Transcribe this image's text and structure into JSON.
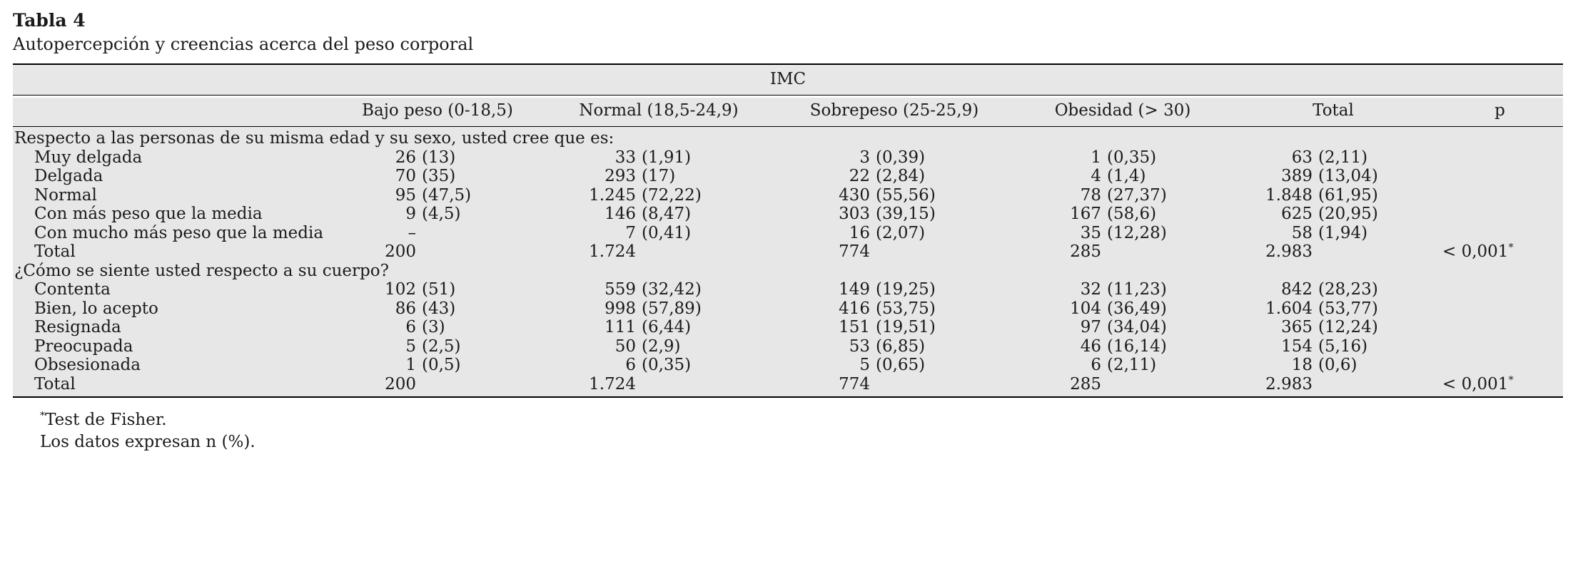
{
  "page": {
    "title": "Tabla 4",
    "subtitle": "Autopercepción y creencias acerca del peso corporal"
  },
  "table": {
    "group_header": "IMC",
    "columns": [
      "Bajo peso (0-18,5)",
      "Normal (18,5-24,9)",
      "Sobrepeso (25-25,9)",
      "Obesidad (> 30)",
      "Total",
      "p"
    ],
    "sections": [
      {
        "header": "Respecto a las personas de su misma edad y su sexo, usted cree que es:",
        "rows": [
          {
            "label": "Muy delgada",
            "cells": [
              "26 (13)",
              "33 (1,91)",
              "3 (0,39)",
              "1 (0,35)",
              "63 (2,11)",
              ""
            ]
          },
          {
            "label": "Delgada",
            "cells": [
              "70 (35)",
              "293 (17)",
              "22 (2,84)",
              "4 (1,4)",
              "389 (13,04)",
              ""
            ]
          },
          {
            "label": "Normal",
            "cells": [
              "95 (47,5)",
              "1.245 (72,22)",
              "430 (55,56)",
              "78 (27,37)",
              "1.848 (61,95)",
              ""
            ]
          },
          {
            "label": "Con más peso que la media",
            "cells": [
              "9 (4,5)",
              "146 (8,47)",
              "303 (39,15)",
              "167 (58,6)",
              "625 (20,95)",
              ""
            ]
          },
          {
            "label": "Con mucho más peso que la media",
            "cells": [
              "–",
              "7 (0,41)",
              "16 (2,07)",
              "35 (12,28)",
              "58 (1,94)",
              ""
            ]
          },
          {
            "label": "Total",
            "cells": [
              "200",
              "1.724",
              "774",
              "285",
              "2.983",
              "< 0,001*"
            ]
          }
        ]
      },
      {
        "header": "¿Cómo se siente usted respecto a su cuerpo?",
        "rows": [
          {
            "label": "Contenta",
            "cells": [
              "102 (51)",
              "559 (32,42)",
              "149 (19,25)",
              "32 (11,23)",
              "842 (28,23)",
              ""
            ]
          },
          {
            "label": "Bien, lo acepto",
            "cells": [
              "86 (43)",
              "998 (57,89)",
              "416 (53,75)",
              "104 (36,49)",
              "1.604 (53,77)",
              ""
            ]
          },
          {
            "label": "Resignada",
            "cells": [
              "6 (3)",
              "111 (6,44)",
              "151 (19,51)",
              "97 (34,04)",
              "365 (12,24)",
              ""
            ]
          },
          {
            "label": "Preocupada",
            "cells": [
              "5 (2,5)",
              "50 (2,9)",
              "53 (6,85)",
              "46 (16,14)",
              "154 (5,16)",
              ""
            ]
          },
          {
            "label": "Obsesionada",
            "cells": [
              "1 (0,5)",
              "6 (0,35)",
              "5 (0,65)",
              "6 (2,11)",
              "18 (0,6)",
              ""
            ]
          },
          {
            "label": "Total",
            "cells": [
              "200",
              "1.724",
              "774",
              "285",
              "2.983",
              "< 0,001*"
            ]
          }
        ]
      }
    ],
    "footnotes": [
      {
        "marker": "*",
        "text": "Test de Fisher."
      },
      {
        "marker": "",
        "text": "Los datos expresan n (%)."
      }
    ]
  },
  "colors": {
    "band": "#e7e7e7",
    "rule": "#000000",
    "text": "#1b1b1b"
  }
}
